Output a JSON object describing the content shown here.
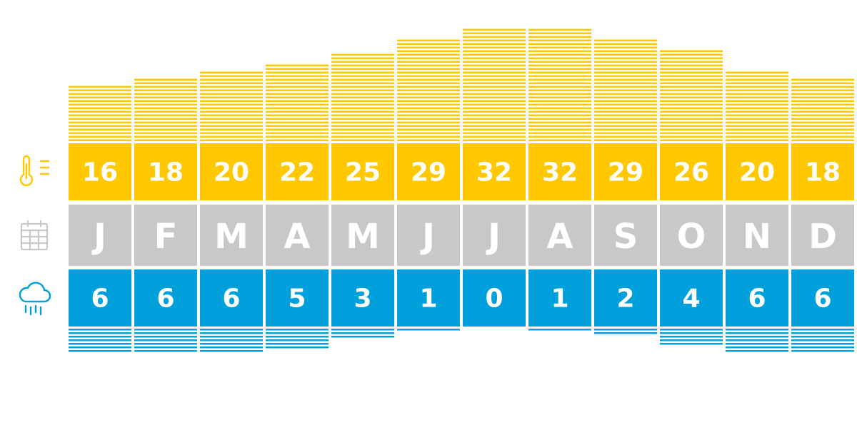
{
  "chart_data": {
    "type": "table",
    "categories": [
      "J",
      "F",
      "M",
      "A",
      "M",
      "J",
      "J",
      "A",
      "S",
      "O",
      "N",
      "D"
    ],
    "series": [
      {
        "values": [
          16,
          18,
          20,
          22,
          25,
          29,
          32,
          32,
          29,
          26,
          20,
          18
        ]
      },
      {
        "values": [
          6,
          6,
          6,
          5,
          3,
          1,
          0,
          1,
          2,
          4,
          6,
          6
        ]
      }
    ],
    "title": "",
    "xlabel": "",
    "ylabel": ""
  },
  "icons": {
    "temperature": "thermometer-icon",
    "months": "calendar-icon",
    "rain": "rain-cloud-icon"
  },
  "colors": {
    "temperature": "#FFC800",
    "months": "#C8C8C8",
    "rain": "#00A0DC",
    "text": "#FFFFFF"
  }
}
